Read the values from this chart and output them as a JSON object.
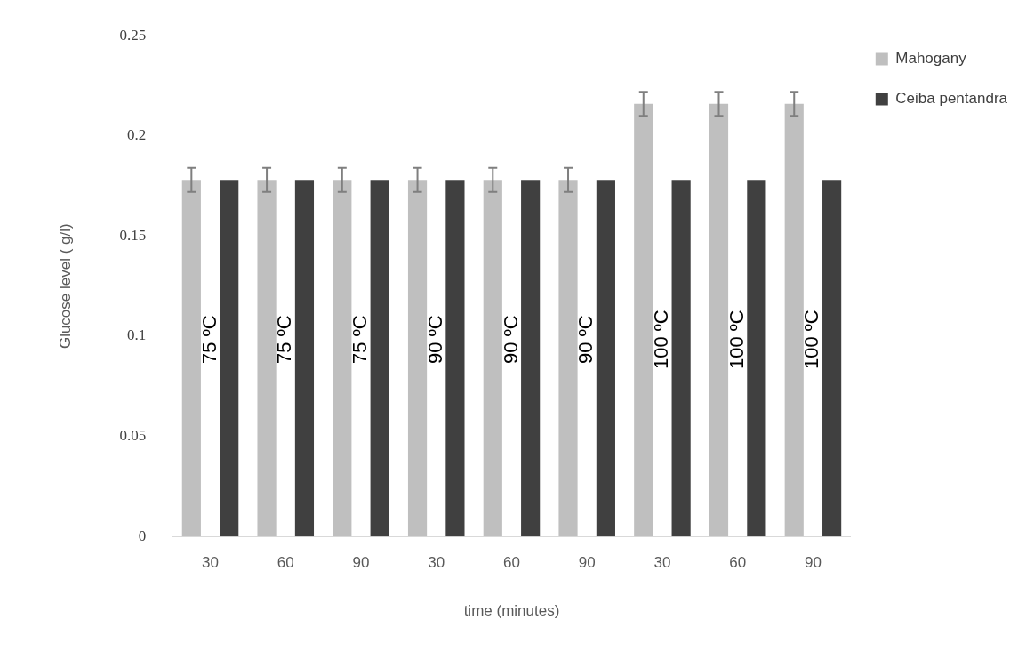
{
  "chart_data": {
    "type": "bar",
    "xlabel": "time (minutes)",
    "ylabel": "Glucose level ( g/l)",
    "categories": [
      "30",
      "60",
      "90",
      "30",
      "60",
      "90",
      "30",
      "60",
      "90"
    ],
    "series": [
      {
        "name": "Mahogany",
        "color": "#bfbfbf",
        "values": [
          0.178,
          0.178,
          0.178,
          0.178,
          0.178,
          0.178,
          0.216,
          0.216,
          0.216
        ],
        "errors": [
          0.006,
          0.006,
          0.006,
          0.006,
          0.006,
          0.006,
          0.006,
          0.006,
          0.006
        ]
      },
      {
        "name": "Ceiba pentandra",
        "color": "#404040",
        "values": [
          0.178,
          0.178,
          0.178,
          0.178,
          0.178,
          0.178,
          0.178,
          0.178,
          0.178
        ]
      }
    ],
    "ylim": [
      0,
      0.25
    ],
    "yticks": [
      0,
      0.05,
      0.1,
      0.15,
      0.2,
      0.25
    ],
    "grid": false,
    "legend": "right",
    "annotations": [
      "75 ºC",
      "75 ºC",
      "75 ºC",
      "90 ºC",
      "90 ºC",
      "90 ºC",
      "100 ºC",
      "100 ºC",
      "100 ºC"
    ]
  }
}
